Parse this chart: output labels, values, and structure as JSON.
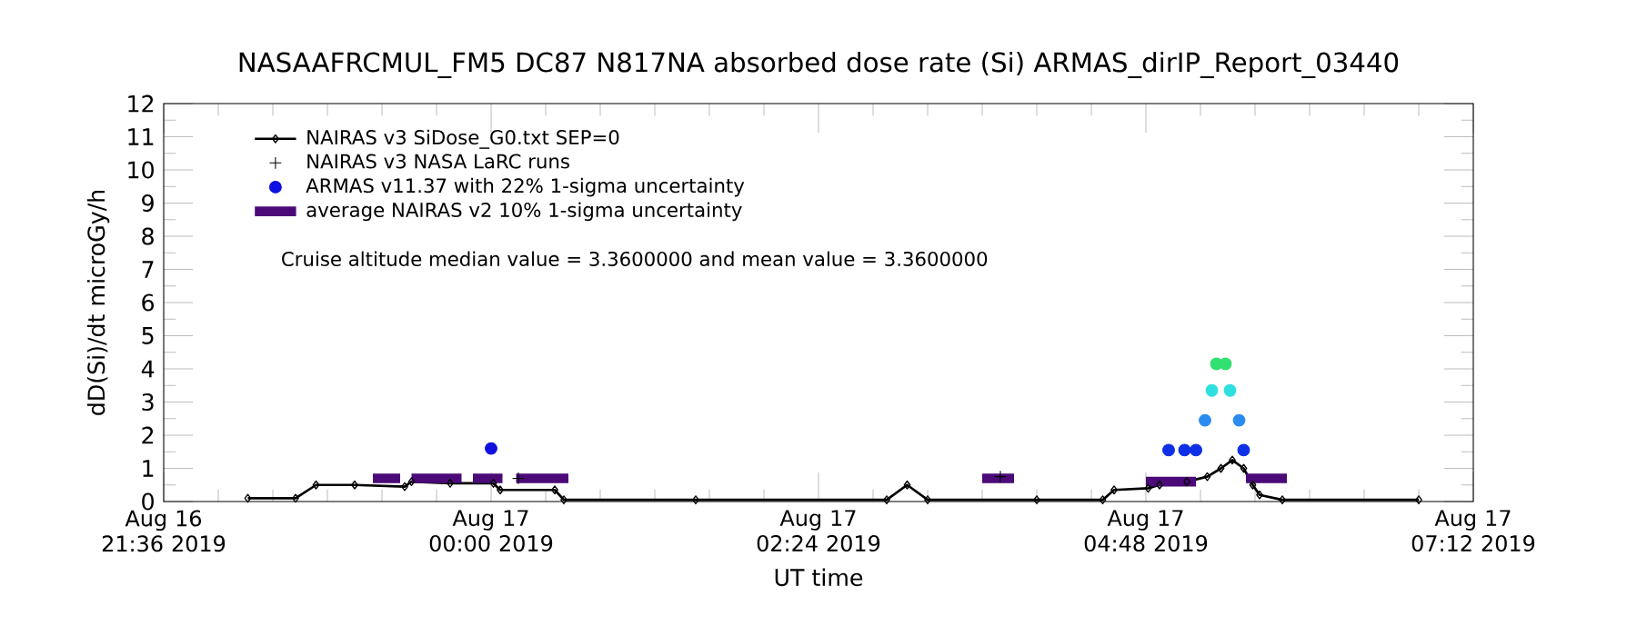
{
  "chart_data": {
    "type": "line",
    "title": "NASAAFRCMUL_FM5 DC87 N817NA absorbed dose rate (Si) ARMAS_dirIP_Report_03440",
    "xlabel": "UT time",
    "ylabel": "dD(Si)/dt microGy/h",
    "annotations": [
      "Cruise altitude median value = 3.3600000 and mean value = 3.3600000"
    ],
    "xlim": [
      "2019-08-16T21:36",
      "2019-08-17T07:12"
    ],
    "xticks": [
      {
        "value": "2019-08-16T21:36",
        "label": "Aug 16 21:36 2019"
      },
      {
        "value": "2019-08-17T00:00",
        "label": "Aug 17 00:00 2019"
      },
      {
        "value": "2019-08-17T02:24",
        "label": "Aug 17 02:24 2019"
      },
      {
        "value": "2019-08-17T04:48",
        "label": "Aug 17 04:48 2019"
      },
      {
        "value": "2019-08-17T07:12",
        "label": "Aug 17 07:12 2019"
      }
    ],
    "ylim": [
      0,
      12
    ],
    "yticks": [
      0,
      1,
      2,
      3,
      4,
      5,
      6,
      7,
      8,
      9,
      10,
      11,
      12
    ],
    "grid": false,
    "legend": "top left",
    "series": [
      {
        "name": "NAIRAS v3 SiDose_G0.txt SEP=0",
        "marker": "diamond",
        "color": "#000000",
        "x": [
          "2019-08-16T22:13",
          "2019-08-16T22:34",
          "2019-08-16T22:43",
          "2019-08-16T23:00",
          "2019-08-16T23:22",
          "2019-08-16T23:25",
          "2019-08-16T23:42",
          "2019-08-17T00:01",
          "2019-08-17T00:04",
          "2019-08-17T00:28",
          "2019-08-17T00:32",
          "2019-08-17T01:30",
          "2019-08-17T02:54",
          "2019-08-17T03:03",
          "2019-08-17T03:12",
          "2019-08-17T04:00",
          "2019-08-17T04:29",
          "2019-08-17T04:34",
          "2019-08-17T04:49",
          "2019-08-17T04:54",
          "2019-08-17T05:06",
          "2019-08-17T05:15",
          "2019-08-17T05:21",
          "2019-08-17T05:26",
          "2019-08-17T05:31",
          "2019-08-17T05:35",
          "2019-08-17T05:38",
          "2019-08-17T05:48",
          "2019-08-17T06:48"
        ],
        "values": [
          0.1,
          0.1,
          0.5,
          0.5,
          0.45,
          0.6,
          0.55,
          0.55,
          0.35,
          0.35,
          0.05,
          0.05,
          0.05,
          0.5,
          0.05,
          0.05,
          0.05,
          0.35,
          0.4,
          0.5,
          0.6,
          0.75,
          1.0,
          1.25,
          1.0,
          0.5,
          0.2,
          0.05,
          0.05
        ]
      },
      {
        "name": "NAIRAS v3 NASA LaRC runs",
        "type": "scatter",
        "marker": "cross",
        "color": "#000000",
        "x": [
          "2019-08-17T00:12",
          "2019-08-17T03:44"
        ],
        "values": [
          0.7,
          0.75
        ]
      },
      {
        "name": "ARMAS v11.37 with 22% 1-sigma uncertainty",
        "type": "scatter",
        "marker": "circle",
        "x": [
          "2019-08-17T00:00",
          "2019-08-17T04:58",
          "2019-08-17T05:05",
          "2019-08-17T05:10",
          "2019-08-17T05:14",
          "2019-08-17T05:17",
          "2019-08-17T05:19",
          "2019-08-17T05:23",
          "2019-08-17T05:25",
          "2019-08-17T05:29",
          "2019-08-17T05:31"
        ],
        "values": [
          1.6,
          1.55,
          1.55,
          1.55,
          2.45,
          3.35,
          4.15,
          4.15,
          3.35,
          2.45,
          1.55
        ],
        "colors": [
          "#1010e0",
          "#1030e8",
          "#1030e8",
          "#1030e8",
          "#2a8cf0",
          "#30e0e0",
          "#30e070",
          "#30e070",
          "#30e0e0",
          "#2a8cf0",
          "#1030e8"
        ]
      },
      {
        "name": "average NAIRAS v2 10% 1-sigma uncertainty",
        "marker": "none",
        "color": "#4b0a78",
        "x": [
          "2019-08-16T23:08",
          "2019-08-16T23:20",
          "2019-08-16T23:21",
          "2019-08-16T23:25",
          "2019-08-16T23:47",
          "2019-08-16T23:48",
          "2019-08-16T23:52",
          "2019-08-17T00:05",
          "2019-08-17T00:06",
          "2019-08-17T00:11",
          "2019-08-17T00:34",
          "2019-08-17T01:00",
          "2019-08-17T03:36",
          "2019-08-17T03:50",
          "2019-08-17T04:00",
          "2019-08-17T04:48",
          "2019-08-17T05:10",
          "2019-08-17T05:18",
          "2019-08-17T05:32",
          "2019-08-17T05:50"
        ],
        "values": [
          0.7,
          0.7,
          null,
          0.7,
          0.7,
          null,
          0.7,
          0.7,
          null,
          0.7,
          0.7,
          null,
          0.7,
          0.7,
          null,
          0.6,
          0.6,
          null,
          0.7,
          0.7
        ]
      }
    ]
  }
}
